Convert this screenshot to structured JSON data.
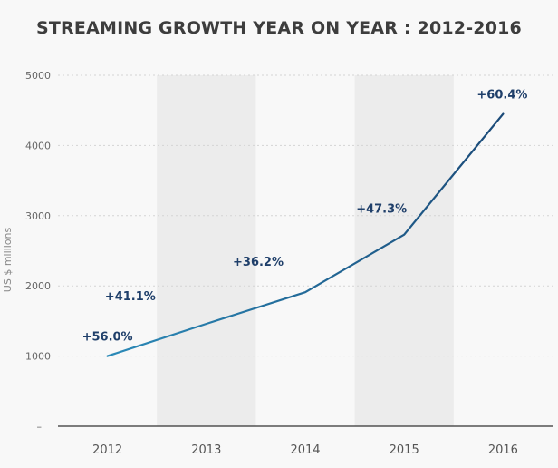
{
  "chart_data": {
    "type": "line",
    "title": "STREAMING GROWTH YEAR ON YEAR : 2012-2016",
    "ylabel": "US $ millions",
    "xlabel": "",
    "ylim": [
      0,
      5000
    ],
    "yticks": [
      5000,
      4000,
      3000,
      2000,
      1000
    ],
    "zero_tick_label": "–",
    "categories": [
      "2012",
      "2013",
      "2014",
      "2015",
      "2016"
    ],
    "series": [
      {
        "values": [
          1000,
          1460,
          1910,
          2730,
          4450
        ],
        "labels": [
          "+56.0%",
          "+41.1%",
          "+36.2%",
          "+47.3%",
          "+60.4%"
        ]
      }
    ],
    "shaded_columns": [
      "2013",
      "2015"
    ],
    "grid": true,
    "line_gradient": [
      "#2b8ab8",
      "#1b4a78"
    ],
    "shade_color": "#ececec"
  }
}
